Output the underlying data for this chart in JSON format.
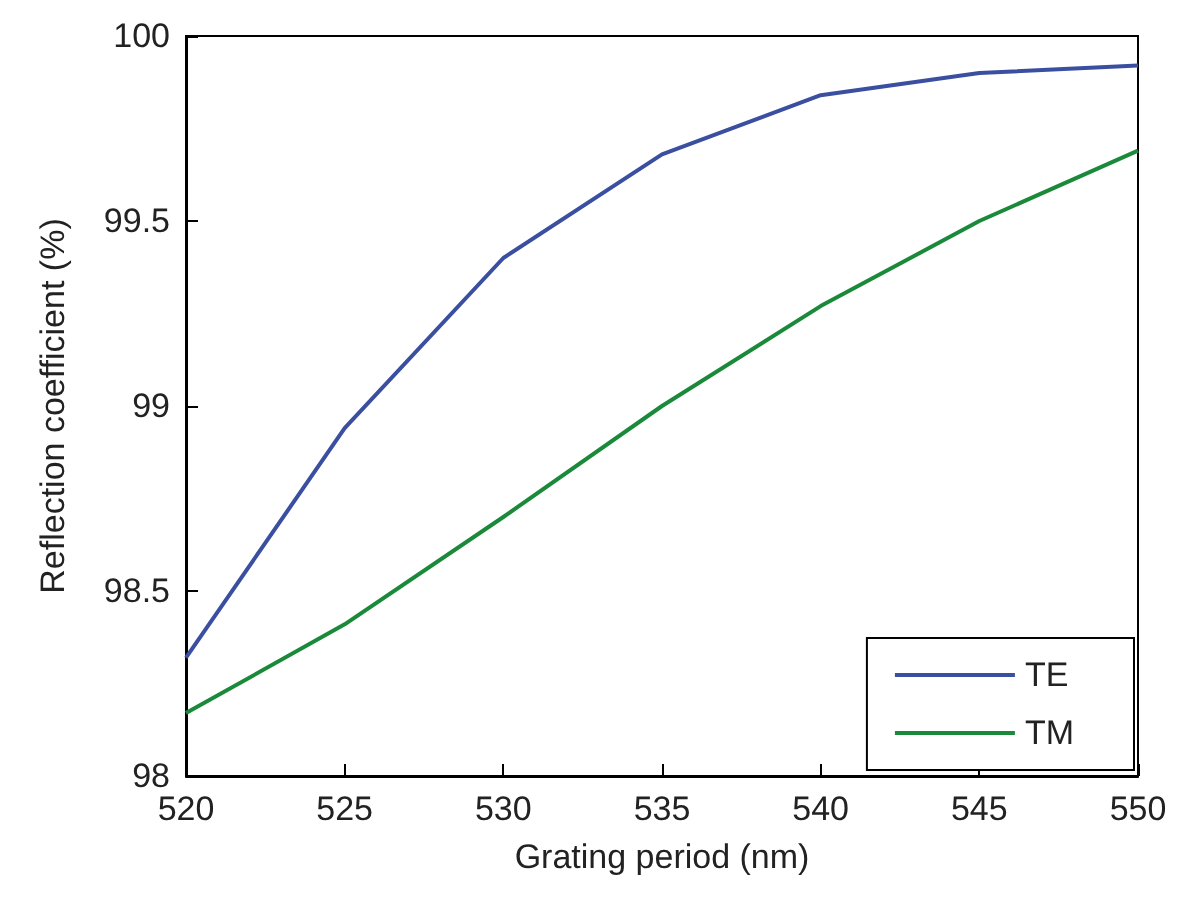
{
  "chart_data": {
    "type": "line",
    "xlabel": "Grating period (nm)",
    "ylabel": "Reflection coefficient (%)",
    "x": [
      520,
      525,
      530,
      535,
      540,
      545,
      550
    ],
    "series": [
      {
        "name": "TE",
        "color": "#3a4fa0",
        "values": [
          98.32,
          98.94,
          99.4,
          99.68,
          99.84,
          99.9,
          99.92
        ]
      },
      {
        "name": "TM",
        "color": "#1a8a3a",
        "values": [
          98.17,
          98.41,
          98.7,
          99.0,
          99.27,
          99.5,
          99.69
        ]
      }
    ],
    "xlim": [
      520,
      550
    ],
    "xticks": [
      520,
      525,
      530,
      535,
      540,
      545,
      550
    ],
    "ylim": [
      98,
      100
    ],
    "yticks": [
      98,
      98.5,
      99,
      99.5,
      100
    ],
    "grid": false,
    "legend": "bottom right",
    "marker": "none",
    "line_style": "solid"
  }
}
